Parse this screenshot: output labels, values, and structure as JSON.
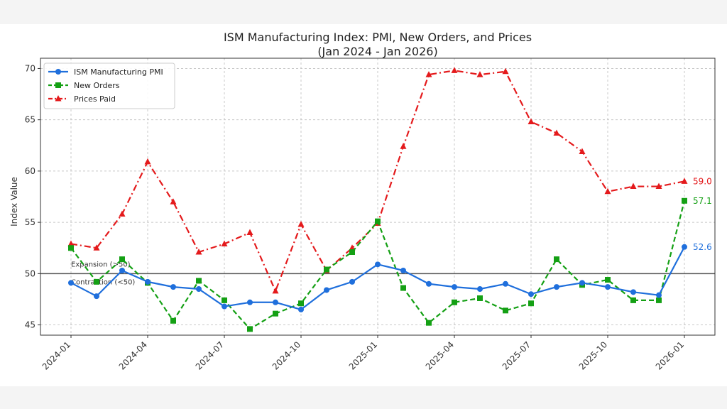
{
  "chart_data": {
    "type": "line",
    "title": "ISM Manufacturing Index: PMI, New Orders, and Prices",
    "subtitle": "(Jan 2024 - Jan 2026)",
    "xlabel": "",
    "ylabel": "Index Value",
    "ylim": [
      44,
      71
    ],
    "yticks": [
      45,
      50,
      55,
      60,
      65,
      70
    ],
    "x": [
      "2024-01",
      "2024-02",
      "2024-03",
      "2024-04",
      "2024-05",
      "2024-06",
      "2024-07",
      "2024-08",
      "2024-09",
      "2024-10",
      "2024-11",
      "2024-12",
      "2025-01",
      "2025-02",
      "2025-03",
      "2025-04",
      "2025-05",
      "2025-06",
      "2025-07",
      "2025-08",
      "2025-09",
      "2025-10",
      "2025-11",
      "2025-12",
      "2026-01"
    ],
    "xticks": [
      "2024-01",
      "2024-04",
      "2024-07",
      "2024-10",
      "2025-01",
      "2025-04",
      "2025-07",
      "2025-10",
      "2026-01"
    ],
    "grid": true,
    "legend_position": "top-left",
    "reference_line": {
      "value": 50,
      "label_above": "Expansion (>50)",
      "label_below": "Contraction (<50)"
    },
    "series": [
      {
        "name": "ISM Manufacturing PMI",
        "color": "#1f6fdc",
        "style": "solid",
        "marker": "circle",
        "values": [
          49.1,
          47.8,
          50.3,
          49.2,
          48.7,
          48.5,
          46.8,
          47.2,
          47.2,
          46.5,
          48.4,
          49.2,
          50.9,
          50.3,
          49.0,
          48.7,
          48.5,
          49.0,
          48.0,
          48.7,
          49.1,
          48.7,
          48.2,
          47.9,
          52.6
        ],
        "end_label": "52.6"
      },
      {
        "name": "New Orders",
        "color": "#14a014",
        "style": "dashed",
        "marker": "square",
        "values": [
          52.5,
          49.2,
          51.4,
          49.1,
          45.4,
          49.3,
          47.4,
          44.6,
          46.1,
          47.1,
          50.4,
          52.1,
          55.1,
          48.6,
          45.2,
          47.2,
          47.6,
          46.4,
          47.1,
          51.4,
          48.9,
          49.4,
          47.4,
          47.4,
          57.1
        ],
        "end_label": "57.1"
      },
      {
        "name": "Prices Paid",
        "color": "#e41a1c",
        "style": "dashdot",
        "marker": "triangle",
        "values": [
          52.9,
          52.5,
          55.8,
          60.9,
          57.0,
          52.1,
          52.9,
          54.0,
          48.3,
          54.8,
          50.3,
          52.5,
          54.9,
          62.4,
          69.4,
          69.8,
          69.4,
          69.7,
          64.8,
          63.7,
          61.9,
          58.0,
          58.5,
          58.5,
          59.0
        ],
        "end_label": "59.0"
      }
    ]
  }
}
